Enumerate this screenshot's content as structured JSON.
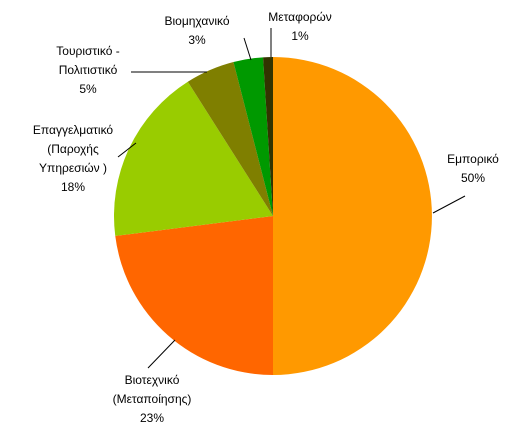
{
  "chart_data": {
    "type": "pie",
    "categories": [
      "Εμπορικό",
      "Βιοτεχνικό\n(Μεταποίησης)",
      "Επαγγελματικό\n(Παροχής\nΥπηρεσιών )",
      "Τουριστικό -\nΠολιτιστικό",
      "Βιομηχανικό",
      "Μεταφορών"
    ],
    "values": [
      50,
      23,
      18,
      5,
      3,
      1
    ],
    "value_labels": [
      "50%",
      "23%",
      "18%",
      "5%",
      "3%",
      "1%"
    ],
    "colors": [
      "#FF9900",
      "#FF6600",
      "#99CC00",
      "#7F7F00",
      "#009900",
      "#333300"
    ]
  }
}
